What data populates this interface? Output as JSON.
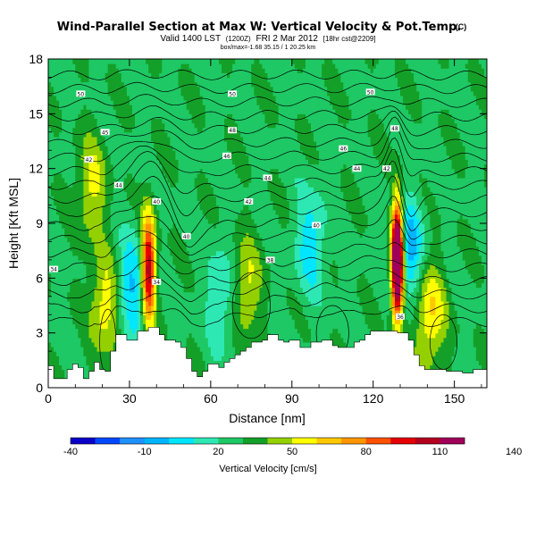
{
  "chart_data": {
    "type": "heatmap",
    "title": "Wind-Parallel Section at Max W: Vertical Velocity & Pot.Temp.",
    "title_suffix": "(C)",
    "subtitle_prefix": "Valid 1400 LST",
    "subtitle_utc": "(1200Z)",
    "subtitle_date": "FRI 2 Mar 2012",
    "subtitle_suffix": "[18hr cst@2209]",
    "small_line": "box/max=-1.68 35.15 / 1 20.25 km",
    "xlabel": "Distance [nm]",
    "ylabel": "Height [Kft MSL]",
    "xlim": [
      0,
      162
    ],
    "ylim": [
      0,
      18
    ],
    "x_ticks": [
      "0",
      "30",
      "60",
      "90",
      "120",
      "150"
    ],
    "y_ticks": [
      "0",
      "3",
      "6",
      "9",
      "12",
      "15",
      "18"
    ],
    "colorbar": {
      "label": "Vertical Velocity [cm/s]",
      "tick_labels": [
        "-40",
        "-10",
        "20",
        "50",
        "80",
        "110",
        "140"
      ],
      "colors": [
        "#0a00c8",
        "#0048ff",
        "#1e90ff",
        "#00b4ff",
        "#00e6ff",
        "#2ee8b4",
        "#1ec864",
        "#14a028",
        "#94d000",
        "#ffff00",
        "#ffc800",
        "#ff9600",
        "#ff5000",
        "#e60000",
        "#b4001e",
        "#a0005a"
      ]
    },
    "terrain_profile_kft": [
      [
        0,
        1.2
      ],
      [
        2,
        0.5
      ],
      [
        5,
        0.5
      ],
      [
        7,
        1.0
      ],
      [
        9,
        1.3
      ],
      [
        11,
        1.1
      ],
      [
        13,
        0.5
      ],
      [
        15,
        0.9
      ],
      [
        17,
        1.4
      ],
      [
        19,
        1.0
      ],
      [
        21,
        0.9
      ],
      [
        23,
        2.0
      ],
      [
        25,
        2.9
      ],
      [
        27,
        2.9
      ],
      [
        29,
        2.6
      ],
      [
        31,
        2.6
      ],
      [
        33,
        3.1
      ],
      [
        35,
        3.1
      ],
      [
        37,
        3.3
      ],
      [
        39,
        3.3
      ],
      [
        41,
        2.9
      ],
      [
        43,
        2.6
      ],
      [
        45,
        2.6
      ],
      [
        47,
        2.5
      ],
      [
        49,
        2.2
      ],
      [
        51,
        1.6
      ],
      [
        53,
        0.9
      ],
      [
        55,
        0.6
      ],
      [
        57,
        0.9
      ],
      [
        59,
        1.3
      ],
      [
        61,
        1.3
      ],
      [
        63,
        1.1
      ],
      [
        65,
        1.4
      ],
      [
        67,
        1.6
      ],
      [
        69,
        1.8
      ],
      [
        71,
        2.0
      ],
      [
        73,
        2.2
      ],
      [
        75,
        2.5
      ],
      [
        77,
        2.5
      ],
      [
        79,
        2.6
      ],
      [
        81,
        2.9
      ],
      [
        83,
        2.9
      ],
      [
        85,
        2.6
      ],
      [
        87,
        2.5
      ],
      [
        89,
        2.6
      ],
      [
        91,
        2.6
      ],
      [
        93,
        2.2
      ],
      [
        95,
        2.2
      ],
      [
        97,
        2.5
      ],
      [
        99,
        2.5
      ],
      [
        101,
        2.6
      ],
      [
        103,
        2.6
      ],
      [
        105,
        2.3
      ],
      [
        107,
        2.2
      ],
      [
        109,
        2.2
      ],
      [
        111,
        2.2
      ],
      [
        113,
        2.5
      ],
      [
        115,
        2.6
      ],
      [
        117,
        2.9
      ],
      [
        119,
        3.1
      ],
      [
        121,
        3.1
      ],
      [
        123,
        3.1
      ],
      [
        125,
        3.1
      ],
      [
        127,
        3.1
      ],
      [
        129,
        3.0
      ],
      [
        131,
        3.0
      ],
      [
        133,
        2.6
      ],
      [
        135,
        1.8
      ],
      [
        137,
        1.2
      ],
      [
        139,
        1.0
      ],
      [
        141,
        1.0
      ],
      [
        143,
        1.0
      ],
      [
        145,
        1.0
      ],
      [
        147,
        0.9
      ],
      [
        149,
        0.9
      ],
      [
        151,
        0.9
      ],
      [
        153,
        0.8
      ],
      [
        155,
        0.8
      ],
      [
        157,
        1.0
      ],
      [
        159,
        1.0
      ],
      [
        162,
        1.0
      ]
    ],
    "vertical_velocity_features_cmps": [
      {
        "x": 129,
        "y": 7.0,
        "peak": 150
      },
      {
        "x": 37,
        "y": 6.5,
        "peak": 85
      },
      {
        "x": 21,
        "y": 4.5,
        "peak": 30
      },
      {
        "x": 141,
        "y": 4.0,
        "peak": 35
      },
      {
        "x": 133,
        "y": 7.5,
        "peak": -35
      },
      {
        "x": 97,
        "y": 8.0,
        "peak": -25
      },
      {
        "x": 31,
        "y": 5.5,
        "peak": -30
      },
      {
        "x": 64,
        "y": 5.0,
        "peak": -20
      },
      {
        "x": 73,
        "y": 5.5,
        "peak": 25
      },
      {
        "x": 16,
        "y": 11.0,
        "peak": 25
      }
    ],
    "theta_contour_labels": [
      {
        "x": 12,
        "y": 16.1,
        "text": "50"
      },
      {
        "x": 68,
        "y": 16.1,
        "text": "50"
      },
      {
        "x": 119,
        "y": 16.2,
        "text": "50"
      },
      {
        "x": 21,
        "y": 14.0,
        "text": "45"
      },
      {
        "x": 68,
        "y": 14.1,
        "text": "48"
      },
      {
        "x": 128,
        "y": 14.2,
        "text": "48"
      },
      {
        "x": 15,
        "y": 12.5,
        "text": "42"
      },
      {
        "x": 66,
        "y": 12.7,
        "text": "46"
      },
      {
        "x": 109,
        "y": 13.1,
        "text": "46"
      },
      {
        "x": 26,
        "y": 11.1,
        "text": "44"
      },
      {
        "x": 81,
        "y": 11.5,
        "text": "44"
      },
      {
        "x": 114,
        "y": 12.0,
        "text": "44"
      },
      {
        "x": 40,
        "y": 10.2,
        "text": "40"
      },
      {
        "x": 74,
        "y": 10.2,
        "text": "42"
      },
      {
        "x": 125,
        "y": 12.0,
        "text": "42"
      },
      {
        "x": 51,
        "y": 8.3,
        "text": "40"
      },
      {
        "x": 99,
        "y": 8.9,
        "text": "40"
      },
      {
        "x": 82,
        "y": 7.0,
        "text": "38"
      },
      {
        "x": 2,
        "y": 6.5,
        "text": "34"
      },
      {
        "x": 40,
        "y": 5.8,
        "text": "34"
      },
      {
        "x": 130,
        "y": 3.9,
        "text": "36"
      }
    ],
    "grid": false
  }
}
